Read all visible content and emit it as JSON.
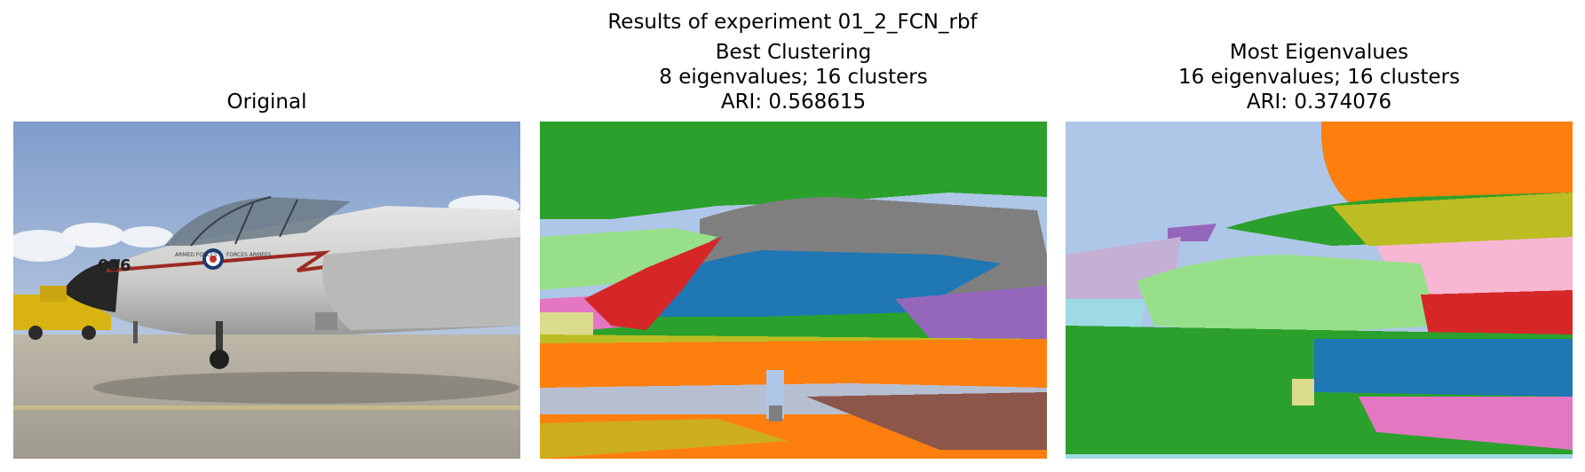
{
  "figure": {
    "suptitle": "Results of experiment 01_2_FCN_rbf"
  },
  "panels": [
    {
      "title_lines": [
        "Original"
      ],
      "content": "photograph of jet aircraft 036 with ARMED FORCES / FORCES ARMEES markings on airfield",
      "aircraft_text": {
        "tail_number": "036",
        "roundel_left": "ARMED FORCES",
        "roundel_right": "FORCES ARMEES"
      }
    },
    {
      "title_lines": [
        "Best Clustering",
        "8 eigenvalues; 16 clusters",
        "ARI: 0.568615"
      ],
      "content": "segmentation map of the aircraft image"
    },
    {
      "title_lines": [
        "Most Eigenvalues",
        "16 eigenvalues; 16 clusters",
        "ARI: 0.374076"
      ],
      "content": "segmentation map of the aircraft image"
    }
  ],
  "colors": {
    "green": "#2ca02c",
    "light_green": "#98df8a",
    "blue": "#1f77b4",
    "light_blue": "#aec7e8",
    "orange": "#ff7f0e",
    "gray": "#7f7f7f",
    "purple": "#9467bd",
    "brown": "#8c564b",
    "pink": "#e377c2",
    "light_pink": "#f7b6d2",
    "red": "#d62728",
    "olive": "#bcbd22",
    "tan": "#dbdb8d",
    "cyan": "#9edae5",
    "lavender": "#c5b0d5"
  }
}
